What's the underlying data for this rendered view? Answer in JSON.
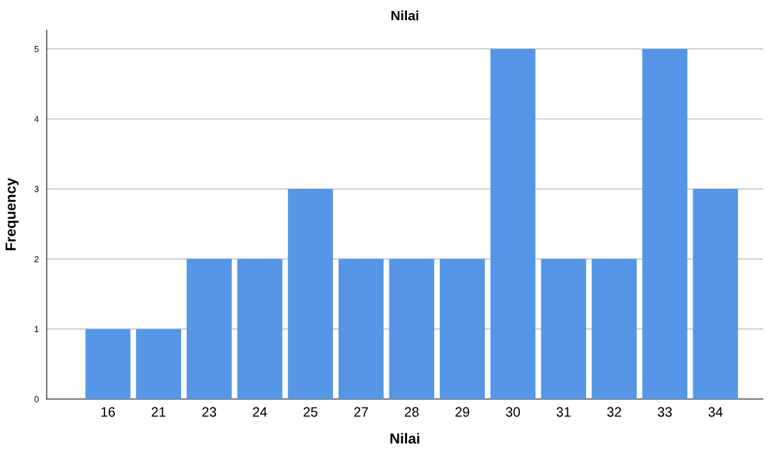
{
  "chart_data": {
    "type": "bar",
    "title": "Nilai",
    "xlabel": "Nilai",
    "ylabel": "Frequency",
    "categories": [
      "16",
      "21",
      "23",
      "24",
      "25",
      "27",
      "28",
      "29",
      "30",
      "31",
      "32",
      "33",
      "34"
    ],
    "values": [
      1,
      1,
      2,
      2,
      3,
      2,
      2,
      2,
      5,
      2,
      2,
      5,
      3
    ],
    "color": "#5596e6",
    "ylim": [
      0,
      5.27
    ],
    "yticks": [
      0,
      1,
      2,
      3,
      4,
      5
    ],
    "grid": "y",
    "legend": false
  }
}
